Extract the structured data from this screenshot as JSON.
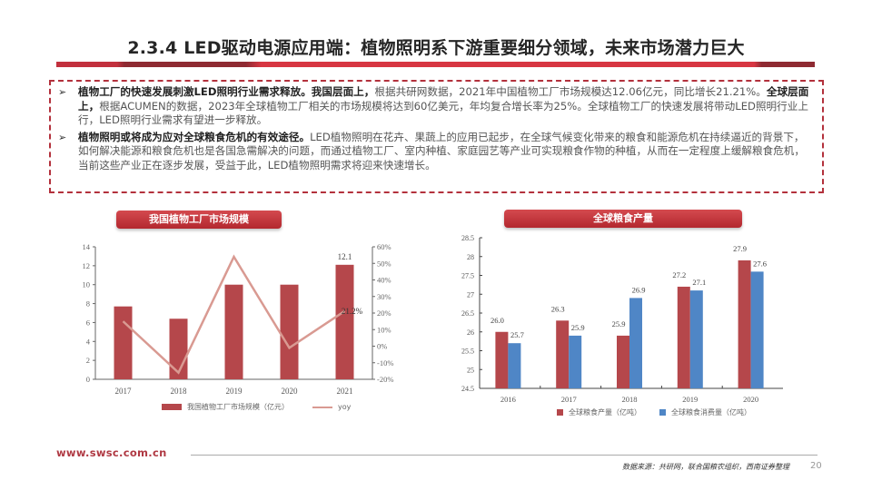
{
  "header": {
    "title": "2.3.4 LED驱动电源应用端：植物照明系下游重要细分领域，未来市场潜力巨大"
  },
  "summary": {
    "bullets": [
      {
        "marker": "➢",
        "bold": "植物工厂的快速发展刺激LED照明行业需求释放。我国层面上，",
        "text1": "根据共研网数据，2021年中国植物工厂市场规模达12.06亿元，同比增长21.21%。",
        "bold2": "全球层面上，",
        "text2": "根据ACUMEN的数据，2023年全球植物工厂相关的市场规模将达到60亿美元，年均复合增长率为25%。全球植物工厂的快速发展将带动LED照明行业上行，LED照明行业需求有望进一步释放。"
      },
      {
        "marker": "➢",
        "bold": "植物照明或将成为应对全球粮食危机的有效途径。",
        "text1": "LED植物照明在花卉、果蔬上的应用已起步，在全球气候变化带来的粮食和能源危机在持续逼近的背景下，如何解决能源和粮食危机也是各国急需解决的问题，而通过植物工厂、室内种植、家庭园艺等产业可实现粮食作物的种植，从而在一定程度上缓解粮食危机，当前这些产业正在逐步发展，受益于此，LED植物照明需求将迎来快速增长。"
      }
    ]
  },
  "chart_data": [
    {
      "type": "bar",
      "title": "我国植物工厂市场规模",
      "categories": [
        "2017",
        "2018",
        "2019",
        "2020",
        "2021"
      ],
      "series": [
        {
          "name": "我国植物工厂市场规模（亿元）",
          "type": "bar",
          "axis": "left",
          "color": "#b5474b",
          "values": [
            7.7,
            6.4,
            10.0,
            10.0,
            12.1
          ]
        },
        {
          "name": "yoy",
          "type": "line",
          "axis": "right",
          "color": "#d99a92",
          "values": [
            0.15,
            -0.16,
            0.54,
            -0.01,
            0.212
          ]
        }
      ],
      "data_labels": [
        {
          "category": "2021",
          "series": "bar",
          "text": "12.1"
        },
        {
          "category": "2021",
          "series": "yoy",
          "text": "21.2%"
        }
      ],
      "xlabel": "",
      "ylabel": "",
      "ylim": [
        0,
        14
      ],
      "yticks": [
        "0",
        "2",
        "4",
        "6",
        "8",
        "10",
        "12",
        "14"
      ],
      "y2lim": [
        -0.2,
        0.6
      ],
      "y2ticks": [
        "-20%",
        "-10%",
        "0%",
        "10%",
        "20%",
        "30%",
        "40%",
        "50%",
        "60%"
      ],
      "legend_position": "bottom",
      "grid": false
    },
    {
      "type": "bar",
      "title": "全球粮食产量",
      "categories": [
        "2016",
        "2017",
        "2018",
        "2019",
        "2020"
      ],
      "series": [
        {
          "name": "全球粮食产量（亿吨）",
          "color": "#b5474b",
          "values": [
            26.0,
            26.3,
            25.9,
            27.2,
            27.9
          ]
        },
        {
          "name": "全球粮食消费量（亿吨）",
          "color": "#4f86c6",
          "values": [
            25.7,
            25.9,
            26.9,
            27.1,
            27.6
          ]
        }
      ],
      "xlabel": "",
      "ylabel": "",
      "ylim": [
        24.5,
        28.5
      ],
      "yticks": [
        "24.5",
        "25",
        "25.5",
        "26",
        "26.5",
        "27",
        "27.5",
        "28",
        "28.5"
      ],
      "legend_position": "bottom",
      "grid": false
    }
  ],
  "charts": {
    "left": {
      "title": "我国植物工厂市场规模",
      "legend_bar": "我国植物工厂市场规模（亿元）",
      "legend_line": "yoy",
      "label_2021": "12.1",
      "label_yoy": "21.2%",
      "cats": [
        "2017",
        "2018",
        "2019",
        "2020",
        "2021"
      ],
      "yticks": [
        "0",
        "2",
        "4",
        "6",
        "8",
        "10",
        "12",
        "14"
      ],
      "y2ticks": [
        "-20%",
        "-10%",
        "0%",
        "10%",
        "20%",
        "30%",
        "40%",
        "50%",
        "60%"
      ]
    },
    "right": {
      "title": "全球粮食产量",
      "legend_a": "全球粮食产量（亿吨）",
      "legend_b": "全球粮食消费量（亿吨）",
      "cats": [
        "2016",
        "2017",
        "2018",
        "2019",
        "2020"
      ],
      "yticks": [
        "24.5",
        "25",
        "25.5",
        "26",
        "26.5",
        "27",
        "27.5",
        "28",
        "28.5"
      ],
      "labels_a": [
        "26.0",
        "26.3",
        "25.9",
        "27.2",
        "27.9"
      ],
      "labels_b": [
        "25.7",
        "25.9",
        "26.9",
        "27.1",
        "27.6"
      ]
    }
  },
  "colors": {
    "brand_red": "#b3313c",
    "bar_red": "#b5474b",
    "bar_blue": "#4f86c6",
    "line_pink": "#d99a92"
  },
  "footer": {
    "url": "www.swsc.com.cn",
    "source": "数据来源：共研网，联合国粮农组织，西南证券整理",
    "page": "20"
  }
}
